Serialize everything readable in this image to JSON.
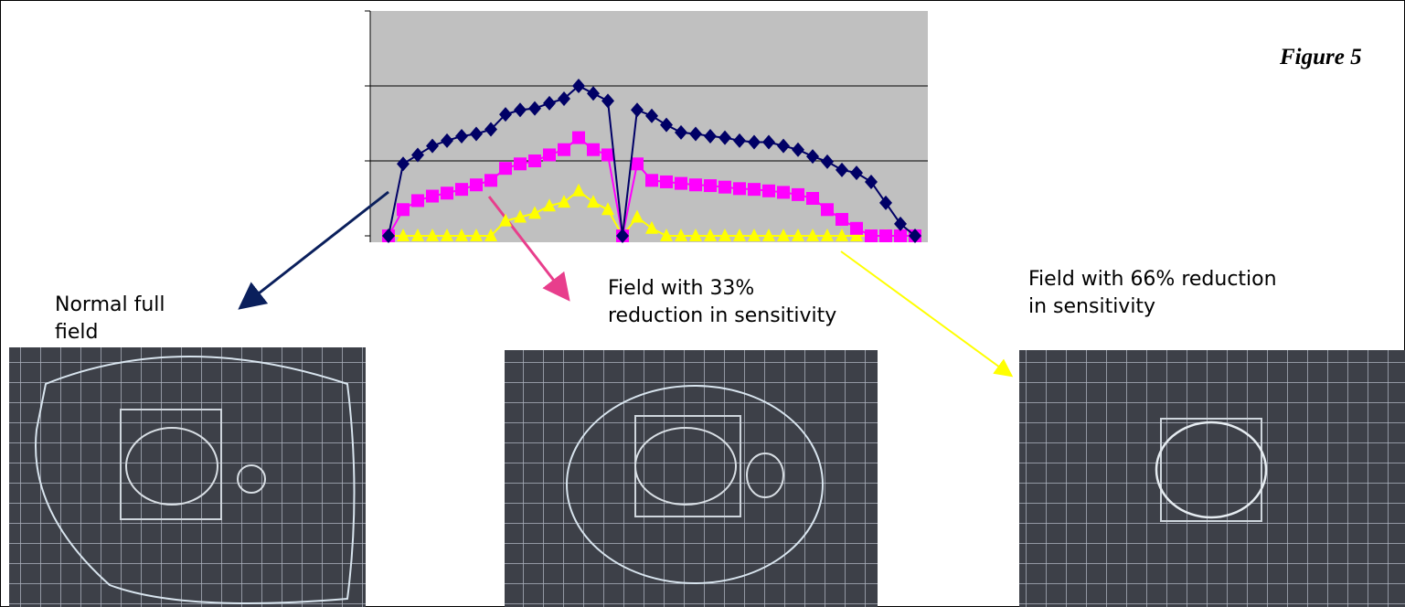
{
  "figure_label": "Figure 5",
  "chart_data": {
    "type": "line",
    "categories": [
      null,
      null,
      null,
      null,
      null,
      null,
      null,
      null,
      null,
      null,
      null,
      null,
      null,
      null,
      null,
      null,
      null,
      null,
      null,
      null,
      null,
      null,
      null,
      null,
      null,
      null,
      null,
      null,
      null,
      null,
      null,
      null,
      null,
      null,
      null,
      null,
      null
    ],
    "series": [
      {
        "color": "#000066",
        "marker": "diamond",
        "values": [
          0,
          0.96,
          1.08,
          1.2,
          1.27,
          1.33,
          1.36,
          1.42,
          1.62,
          1.68,
          1.7,
          1.77,
          1.83,
          2.0,
          1.9,
          1.8,
          0,
          1.68,
          1.6,
          1.48,
          1.38,
          1.36,
          1.33,
          1.31,
          1.27,
          1.25,
          1.25,
          1.2,
          1.15,
          1.06,
          0.99,
          0.88,
          0.84,
          0.72,
          0.44,
          0.16,
          0
        ]
      },
      {
        "color": "#ff00ff",
        "marker": "square",
        "values": [
          0,
          0.35,
          0.47,
          0.53,
          0.57,
          0.62,
          0.68,
          0.74,
          0.9,
          0.96,
          1.0,
          1.08,
          1.15,
          1.31,
          1.15,
          1.08,
          0,
          0.96,
          0.74,
          0.72,
          0.7,
          0.68,
          0.67,
          0.65,
          0.63,
          0.62,
          0.6,
          0.58,
          0.55,
          0.5,
          0.35,
          0.22,
          0.1,
          0,
          0,
          0,
          0
        ]
      },
      {
        "color": "#ffff00",
        "marker": "triangle",
        "values": [
          0,
          0,
          0,
          0,
          0,
          0,
          0,
          0,
          0.2,
          0.25,
          0.3,
          0.4,
          0.45,
          0.6,
          0.45,
          0.35,
          0,
          0.25,
          0.1,
          0,
          0,
          0,
          0,
          0,
          0,
          0,
          0,
          0,
          0,
          0,
          0,
          0,
          0,
          0,
          0,
          0,
          0
        ]
      }
    ],
    "ylim": [
      0,
      3
    ],
    "yticks": [
      0,
      1,
      2,
      3
    ],
    "grid": true
  },
  "annotations": [
    {
      "lines": [
        "Normal full",
        "field"
      ]
    },
    {
      "lines": [
        "Field with 33%",
        "reduction in sensitivity"
      ]
    },
    {
      "lines": [
        "Field with 66% reduction",
        "in sensitivity"
      ]
    }
  ]
}
